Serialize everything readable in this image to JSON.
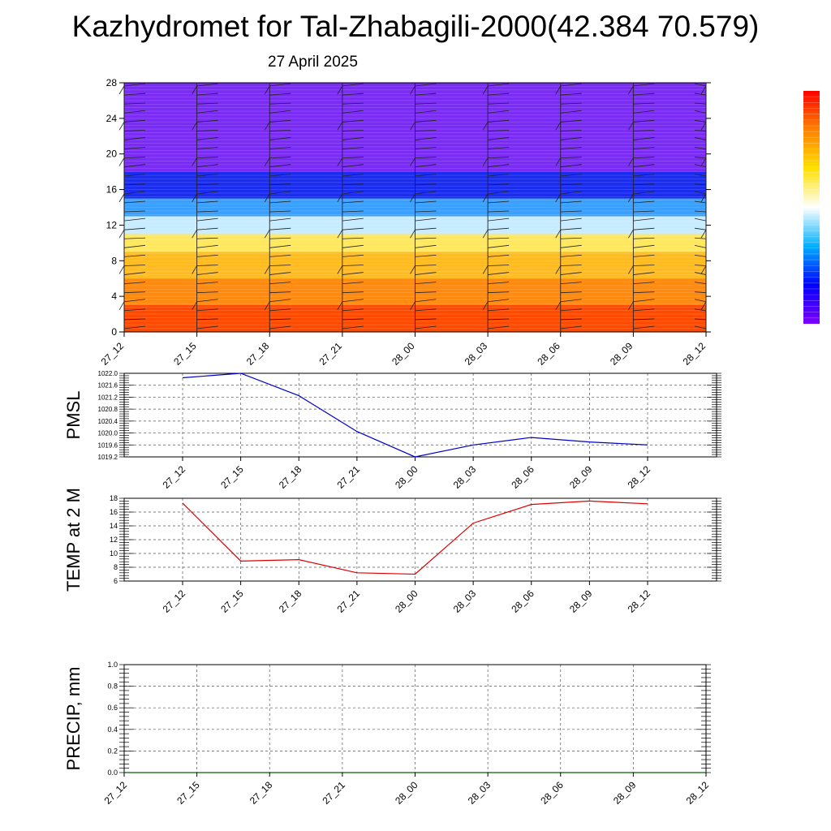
{
  "header": {
    "title": "Kazhydromet for Tal-Zhabagili-2000(42.384 70.579)",
    "date": "27 April 2025"
  },
  "colorbar": {
    "colors": [
      "#ff0000",
      "#ff8000",
      "#ffe000",
      "#ffffff",
      "#00b0ff",
      "#0000ff",
      "#8000ff"
    ]
  },
  "chart_data": [
    {
      "type": "heatmap",
      "x_ticks": [
        "27_12",
        "27_15",
        "27_18",
        "27_21",
        "28_00",
        "28_03",
        "28_06",
        "28_09",
        "28_12"
      ],
      "y_ticks": [
        "0",
        "4",
        "8",
        "12",
        "16",
        "20",
        "24",
        "28"
      ],
      "ylim": [
        0,
        28
      ],
      "bands": [
        {
          "from": 0,
          "to": 3,
          "color": "#ff4a00"
        },
        {
          "from": 3,
          "to": 6,
          "color": "#ff8a10"
        },
        {
          "from": 6,
          "to": 9,
          "color": "#ffbb20"
        },
        {
          "from": 9,
          "to": 11,
          "color": "#ffe860"
        },
        {
          "from": 11,
          "to": 13,
          "color": "#c8ecff"
        },
        {
          "from": 13,
          "to": 15,
          "color": "#3aa0ff"
        },
        {
          "from": 15,
          "to": 18,
          "color": "#1a2cf0"
        },
        {
          "from": 18,
          "to": 28,
          "color": "#7a2cf5"
        }
      ]
    },
    {
      "type": "line",
      "ylabel": "PMSL",
      "x": [
        "27_12",
        "27_15",
        "27_18",
        "27_21",
        "28_00",
        "28_03",
        "28_06",
        "28_09",
        "28_12"
      ],
      "values": [
        1021.85,
        1022.0,
        1021.25,
        1020.05,
        1019.2,
        1019.6,
        1019.85,
        1019.7,
        1019.6
      ],
      "y_ticks": [
        "1019.2",
        "1019.6",
        "1020.0",
        "1020.4",
        "1020.8",
        "1021.2",
        "1021.6",
        "1022.0"
      ],
      "ylim": [
        1019.2,
        1022.0
      ],
      "color": "#0000cc"
    },
    {
      "type": "line",
      "ylabel": "TEMP at 2 M",
      "x": [
        "27_12",
        "27_15",
        "27_18",
        "27_21",
        "28_00",
        "28_03",
        "28_06",
        "28_09",
        "28_12"
      ],
      "values": [
        17.3,
        8.9,
        9.1,
        7.2,
        7.0,
        14.4,
        17.1,
        17.6,
        17.2
      ],
      "y_ticks": [
        "6",
        "8",
        "10",
        "12",
        "14",
        "16",
        "18"
      ],
      "ylim": [
        6,
        18
      ],
      "color": "#dd0000"
    },
    {
      "type": "line",
      "ylabel": "PRECIP, mm",
      "x": [
        "27_12",
        "27_15",
        "27_18",
        "27_21",
        "28_00",
        "28_03",
        "28_06",
        "28_09",
        "28_12"
      ],
      "values": [
        0,
        0,
        0,
        0,
        0,
        0,
        0,
        0,
        0
      ],
      "y_ticks": [
        "0.0",
        "0.2",
        "0.4",
        "0.6",
        "0.8",
        "1.0"
      ],
      "ylim": [
        0,
        1.0
      ],
      "color": "#006400"
    }
  ]
}
